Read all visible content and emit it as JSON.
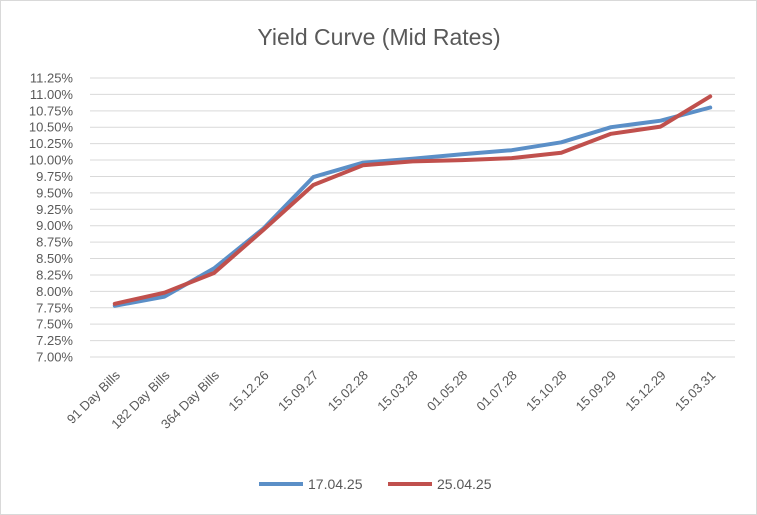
{
  "chart_data": {
    "type": "line",
    "title": "Yield Curve (Mid Rates)",
    "xlabel": "",
    "ylabel": "",
    "categories": [
      "91 Day Bills",
      "182 Day Bills",
      "364 Day Bills",
      "15.12.26",
      "15.09.27",
      "15.02.28",
      "15.03.28",
      "01.05.28",
      "01.07.28",
      "15.10.28",
      "15.09.29",
      "15.12.29",
      "15.03.31"
    ],
    "y_ticks": [
      "7.00%",
      "7.25%",
      "7.50%",
      "7.75%",
      "8.00%",
      "8.25%",
      "8.50%",
      "8.75%",
      "9.00%",
      "9.25%",
      "9.50%",
      "9.75%",
      "10.00%",
      "10.25%",
      "10.50%",
      "10.75%",
      "11.00%",
      "11.25%"
    ],
    "ylim": [
      7.0,
      11.25
    ],
    "y_unit": "%",
    "grid": "horizontal",
    "legend_position": "bottom",
    "series": [
      {
        "name": "17.04.25",
        "color": "#5b8fc7",
        "values": [
          7.78,
          7.92,
          8.35,
          8.96,
          9.74,
          9.96,
          10.02,
          10.09,
          10.15,
          10.27,
          10.5,
          10.6,
          10.8
        ]
      },
      {
        "name": "25.04.25",
        "color": "#c0504d",
        "values": [
          7.81,
          7.98,
          8.28,
          8.94,
          9.62,
          9.92,
          9.98,
          10.0,
          10.03,
          10.11,
          10.4,
          10.51,
          10.97
        ]
      }
    ]
  }
}
